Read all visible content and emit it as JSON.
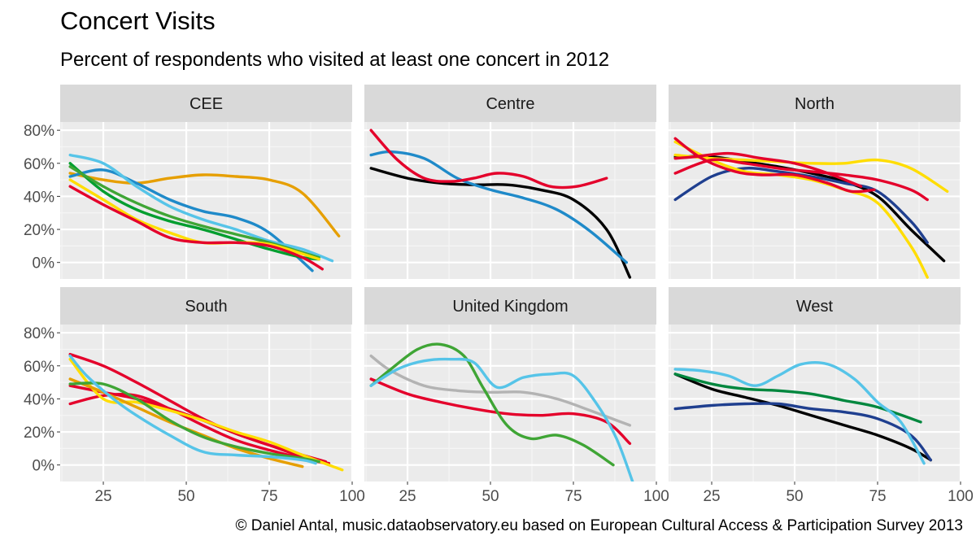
{
  "title": "Concert Visits",
  "subtitle": "Percent of respondents who visited at least one concert in 2012",
  "caption": "© Daniel Antal, music.dataobservatory.eu based on European Cultural Access & Participation Survey 2013",
  "chart_data": {
    "type": "line",
    "facet_labels": [
      "CEE",
      "Centre",
      "North",
      "South",
      "United Kingdom",
      "West"
    ],
    "x_ticks": [
      25,
      50,
      75,
      100
    ],
    "y_ticks": [
      0,
      20,
      40,
      60,
      80
    ],
    "y_tick_labels": [
      "0%",
      "20%",
      "40%",
      "60%",
      "80%"
    ],
    "xlim": [
      12,
      100
    ],
    "ylim": [
      -10,
      85
    ],
    "legend": "none",
    "grid": true,
    "panels": [
      {
        "facet": "CEE",
        "series": [
          {
            "color": "#e69f00",
            "x": [
              15,
              25,
              35,
              45,
              55,
              65,
              75,
              85,
              96
            ],
            "y": [
              54,
              50,
              48,
              51,
              53,
              52,
              50,
              42,
              16
            ]
          },
          {
            "color": "#1f8ac9",
            "x": [
              15,
              25,
              35,
              45,
              55,
              65,
              75,
              88
            ],
            "y": [
              52,
              56,
              48,
              38,
              31,
              27,
              18,
              -5
            ]
          },
          {
            "color": "#56c4e8",
            "x": [
              15,
              25,
              35,
              45,
              55,
              65,
              75,
              85,
              94
            ],
            "y": [
              65,
              60,
              46,
              34,
              26,
              20,
              13,
              8,
              1
            ]
          },
          {
            "color": "#009e2f",
            "x": [
              15,
              25,
              35,
              45,
              55,
              65,
              75,
              85,
              90
            ],
            "y": [
              60,
              43,
              32,
              25,
              20,
              14,
              8,
              3,
              2
            ]
          },
          {
            "color": "#3fa535",
            "x": [
              15,
              25,
              35,
              45,
              55,
              65,
              75,
              90
            ],
            "y": [
              58,
              46,
              36,
              28,
              22,
              17,
              12,
              3
            ]
          },
          {
            "color": "#ffdd00",
            "x": [
              15,
              25,
              35,
              45,
              55,
              65,
              75,
              90
            ],
            "y": [
              50,
              38,
              26,
              18,
              12,
              12,
              11,
              2
            ]
          },
          {
            "color": "#e4002b",
            "x": [
              15,
              25,
              35,
              45,
              55,
              65,
              75,
              85,
              91
            ],
            "y": [
              46,
              35,
              25,
              15,
              12,
              12,
              10,
              3,
              -4
            ]
          }
        ]
      },
      {
        "facet": "Centre",
        "series": [
          {
            "color": "#000000",
            "x": [
              14,
              25,
              35,
              45,
              55,
              65,
              75,
              85,
              92
            ],
            "y": [
              57,
              51,
              48,
              47,
              47,
              44,
              38,
              20,
              -9
            ]
          },
          {
            "color": "#1f8ac9",
            "x": [
              14,
              20,
              30,
              40,
              50,
              60,
              70,
              80,
              91
            ],
            "y": [
              65,
              67,
              63,
              51,
              44,
              39,
              32,
              19,
              0
            ]
          },
          {
            "color": "#e4002b",
            "x": [
              14,
              22,
              30,
              38,
              45,
              52,
              60,
              68,
              76,
              85
            ],
            "y": [
              80,
              62,
              51,
              49,
              51,
              54,
              52,
              46,
              46,
              51
            ]
          }
        ]
      },
      {
        "facet": "North",
        "series": [
          {
            "color": "#000000",
            "x": [
              14,
              25,
              35,
              45,
              55,
              65,
              75,
              85,
              95
            ],
            "y": [
              64,
              64,
              61,
              58,
              54,
              49,
              40,
              20,
              1
            ]
          },
          {
            "color": "#1f3f8f",
            "x": [
              14,
              25,
              35,
              45,
              55,
              65,
              75,
              85,
              90
            ],
            "y": [
              38,
              52,
              57,
              55,
              52,
              48,
              43,
              25,
              12
            ]
          },
          {
            "color": "#ffdd00",
            "x": [
              14,
              25,
              35,
              45,
              55,
              65,
              75,
              85,
              90
            ],
            "y": [
              73,
              62,
              55,
              53,
              50,
              44,
              36,
              10,
              -9
            ]
          },
          {
            "color": "#ffdd00",
            "x": [
              14,
              25,
              35,
              45,
              55,
              65,
              75,
              85,
              96
            ],
            "y": [
              65,
              63,
              62,
              61,
              60,
              60,
              62,
              57,
              43
            ]
          },
          {
            "color": "#e4002b",
            "x": [
              14,
              25,
              35,
              45,
              55,
              65,
              75,
              85,
              90
            ],
            "y": [
              54,
              62,
              60,
              57,
              55,
              53,
              50,
              44,
              38
            ]
          },
          {
            "color": "#e4002b",
            "x": [
              14,
              22,
              32,
              40,
              50,
              60,
              67,
              74
            ],
            "y": [
              75,
              63,
              55,
              53,
              53,
              48,
              43,
              44
            ]
          },
          {
            "color": "#e4002b",
            "x": [
              14,
              20,
              30,
              40,
              50,
              60,
              70
            ],
            "y": [
              63,
              64,
              66,
              63,
              60,
              54,
              46
            ]
          }
        ]
      },
      {
        "facet": "South",
        "series": [
          {
            "color": "#e4002b",
            "x": [
              15,
              25,
              35,
              45,
              55,
              65,
              75,
              85,
              93
            ],
            "y": [
              67,
              60,
              50,
              39,
              28,
              19,
              12,
              5,
              1
            ]
          },
          {
            "color": "#e4002b",
            "x": [
              15,
              25,
              35,
              45,
              55,
              65,
              75,
              85,
              92
            ],
            "y": [
              37,
              42,
              42,
              34,
              24,
              15,
              9,
              4,
              1
            ]
          },
          {
            "color": "#e4002b",
            "x": [
              15,
              25,
              35,
              45,
              55,
              65,
              75,
              85,
              92
            ],
            "y": [
              48,
              44,
              40,
              34,
              27,
              19,
              12,
              6,
              2
            ]
          },
          {
            "color": "#ffdd00",
            "x": [
              15,
              25,
              35,
              45,
              55,
              65,
              75,
              85,
              97
            ],
            "y": [
              64,
              40,
              38,
              33,
              27,
              20,
              14,
              6,
              -3
            ]
          },
          {
            "color": "#e69f00",
            "x": [
              15,
              25,
              35,
              45,
              55,
              65,
              75,
              85
            ],
            "y": [
              52,
              44,
              35,
              26,
              18,
              10,
              4,
              -1
            ]
          },
          {
            "color": "#3fa535",
            "x": [
              15,
              25,
              35,
              45,
              55,
              65,
              75,
              85,
              90
            ],
            "y": [
              49,
              49,
              40,
              27,
              17,
              11,
              7,
              4,
              2
            ]
          },
          {
            "color": "#56c4e8",
            "x": [
              15,
              20,
              28,
              35,
              45,
              55,
              65,
              75,
              85,
              89
            ],
            "y": [
              66,
              54,
              40,
              30,
              18,
              8,
              6,
              5,
              3,
              1
            ]
          }
        ]
      },
      {
        "facet": "United Kingdom",
        "series": [
          {
            "color": "#b3b3b3",
            "x": [
              14,
              20,
              30,
              40,
              50,
              60,
              70,
              80,
              92
            ],
            "y": [
              66,
              57,
              48,
              45,
              44,
              44,
              40,
              33,
              24
            ]
          },
          {
            "color": "#e4002b",
            "x": [
              14,
              25,
              35,
              45,
              55,
              65,
              75,
              85,
              92
            ],
            "y": [
              52,
              43,
              38,
              34,
              31,
              30,
              31,
              26,
              13
            ]
          },
          {
            "color": "#3fa535",
            "x": [
              14,
              20,
              28,
              35,
              42,
              48,
              55,
              62,
              70,
              78,
              87
            ],
            "y": [
              48,
              58,
              70,
              73,
              66,
              46,
              24,
              16,
              18,
              12,
              0
            ]
          },
          {
            "color": "#56c4e8",
            "x": [
              14,
              22,
              30,
              38,
              45,
              52,
              60,
              68,
              75,
              82,
              88,
              93
            ],
            "y": [
              48,
              58,
              63,
              64,
              62,
              47,
              53,
              55,
              54,
              37,
              16,
              -11
            ]
          }
        ]
      },
      {
        "facet": "West",
        "series": [
          {
            "color": "#000000",
            "x": [
              14,
              25,
              35,
              45,
              55,
              65,
              75,
              85,
              91
            ],
            "y": [
              55,
              46,
              41,
              36,
              30,
              24,
              18,
              10,
              3
            ]
          },
          {
            "color": "#00873e",
            "x": [
              14,
              25,
              35,
              45,
              55,
              65,
              75,
              88
            ],
            "y": [
              55,
              49,
              46,
              45,
              43,
              39,
              35,
              26
            ]
          },
          {
            "color": "#1f3f8f",
            "x": [
              14,
              25,
              35,
              45,
              55,
              65,
              75,
              85,
              91
            ],
            "y": [
              34,
              36,
              37,
              37,
              34,
              32,
              28,
              18,
              3
            ]
          },
          {
            "color": "#56c4e8",
            "x": [
              14,
              22,
              30,
              38,
              45,
              52,
              60,
              68,
              75,
              82,
              89
            ],
            "y": [
              58,
              57,
              54,
              48,
              54,
              61,
              61,
              52,
              38,
              26,
              1
            ]
          }
        ]
      }
    ]
  }
}
